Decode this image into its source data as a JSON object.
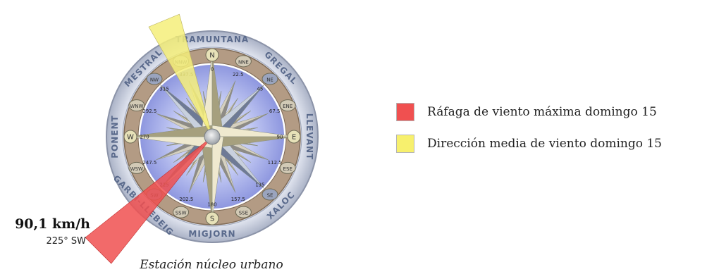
{
  "compass": {
    "wind_names": {
      "north": "TRAMUNTANA",
      "northeast": "GREGAL",
      "east": "LLEVANT",
      "southeast": "XALOC",
      "south": "MIGJORN",
      "southwest": "GARBI-LLEBEIG",
      "west": "PONENT",
      "northwest": "MESTRAL"
    },
    "points": [
      {
        "abbr": "N",
        "deg": "0"
      },
      {
        "abbr": "NNE",
        "deg": "22.5"
      },
      {
        "abbr": "NE",
        "deg": "45"
      },
      {
        "abbr": "ENE",
        "deg": "67.5"
      },
      {
        "abbr": "E",
        "deg": "90"
      },
      {
        "abbr": "ESE",
        "deg": "112.5"
      },
      {
        "abbr": "SE",
        "deg": "135"
      },
      {
        "abbr": "SSE",
        "deg": "157.5"
      },
      {
        "abbr": "S",
        "deg": "180"
      },
      {
        "abbr": "SSW",
        "deg": "202.5"
      },
      {
        "abbr": "SW",
        "deg": "225"
      },
      {
        "abbr": "WSW",
        "deg": "247.5"
      },
      {
        "abbr": "W",
        "deg": "270"
      },
      {
        "abbr": "WNW",
        "deg": "292.5"
      },
      {
        "abbr": "NW",
        "deg": "315"
      },
      {
        "abbr": "NNW",
        "deg": "337.5"
      }
    ]
  },
  "gust": {
    "value": "90,1 km/h",
    "direction": "225° SW",
    "direction_deg": 225,
    "color": "#f05050"
  },
  "mean_wind": {
    "direction_deg": 337.5,
    "color": "#f5ef7a"
  },
  "legend": [
    {
      "label": "Ráfaga de viento máxima domingo 15",
      "color": "#f05050"
    },
    {
      "label": "Dirección media de viento domingo 15",
      "color": "#f7f06d"
    }
  ],
  "caption": "Estación núcleo urbano"
}
